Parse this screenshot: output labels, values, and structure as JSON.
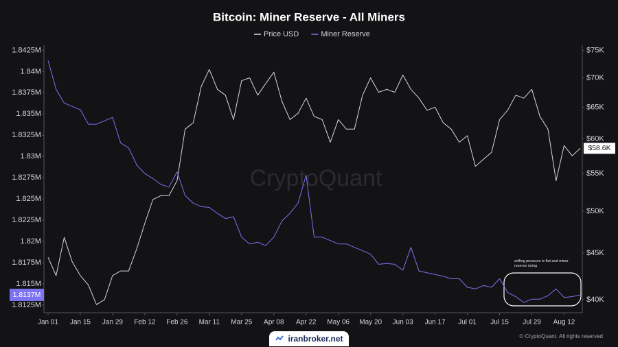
{
  "chart_data": {
    "type": "line",
    "title": "Bitcoin: Miner Reserve - All Miners",
    "categories": [
      "Jan 01",
      null,
      null,
      null,
      "Jan 15",
      null,
      null,
      null,
      "Jan 29",
      null,
      null,
      null,
      "Feb 12",
      null,
      null,
      null,
      "Feb 26",
      null,
      null,
      null,
      "Mar 11",
      null,
      null,
      null,
      "Mar 25",
      null,
      null,
      null,
      "Apr 08",
      null,
      null,
      null,
      "Apr 22",
      null,
      null,
      null,
      "May 06",
      null,
      null,
      null,
      "May 20",
      null,
      null,
      null,
      "Jun 03",
      null,
      null,
      null,
      "Jun 17",
      null,
      null,
      null,
      "Jul 01",
      null,
      null,
      null,
      "Jul 15",
      null,
      null,
      null,
      "Jul 29",
      null,
      null,
      null,
      "Aug 12",
      null,
      null
    ],
    "series": [
      {
        "name": "Price USD",
        "color": "#d9d9d9",
        "axis": "y2",
        "values": [
          44500,
          42500,
          46800,
          44000,
          42500,
          41500,
          39500,
          40000,
          42500,
          43000,
          43000,
          45500,
          48500,
          51500,
          52000,
          52000,
          54000,
          61500,
          62500,
          68500,
          71500,
          68000,
          67000,
          63000,
          69500,
          70000,
          67000,
          69000,
          71000,
          66000,
          63000,
          64000,
          66500,
          63500,
          63000,
          59500,
          63000,
          61500,
          61500,
          67000,
          70000,
          67500,
          68000,
          67500,
          70500,
          68000,
          66500,
          64500,
          65000,
          62500,
          61500,
          59500,
          60500,
          56000,
          57000,
          58000,
          63000,
          64500,
          67000,
          66500,
          68000,
          63500,
          61500,
          54000,
          59000,
          57500,
          58600
        ]
      },
      {
        "name": "Miner Reserve",
        "color": "#7b73f0",
        "values": [
          1841300,
          1837900,
          1836300,
          1835900,
          1835500,
          1833800,
          1833800,
          1834200,
          1834600,
          1831600,
          1831000,
          1829000,
          1828000,
          1827400,
          1826700,
          1826400,
          1828200,
          1825400,
          1824500,
          1824100,
          1824000,
          1823300,
          1822700,
          1822900,
          1820500,
          1819700,
          1819900,
          1819500,
          1820500,
          1822400,
          1823300,
          1824500,
          1827800,
          1820500,
          1820500,
          1820100,
          1819700,
          1819700,
          1819300,
          1818900,
          1818500,
          1817300,
          1817400,
          1817300,
          1816600,
          1819300,
          1816500,
          1816300,
          1816100,
          1815900,
          1815600,
          1815600,
          1814600,
          1814400,
          1814800,
          1814600,
          1815600,
          1814000,
          1813500,
          1812800,
          1813200,
          1813200,
          1813600,
          1814400,
          1813400,
          1813500,
          1813700
        ]
      }
    ],
    "ylim": [
      1811600,
      1843100
    ],
    "yticks": [
      {
        "value": 1842500,
        "label": "1.8425M"
      },
      {
        "value": 1840000,
        "label": "1.84M"
      },
      {
        "value": 1837500,
        "label": "1.8375M"
      },
      {
        "value": 1835000,
        "label": "1.835M"
      },
      {
        "value": 1832500,
        "label": "1.8325M"
      },
      {
        "value": 1830000,
        "label": "1.83M"
      },
      {
        "value": 1827500,
        "label": "1.8275M"
      },
      {
        "value": 1825000,
        "label": "1.825M"
      },
      {
        "value": 1822500,
        "label": "1.8225M"
      },
      {
        "value": 1820000,
        "label": "1.82M"
      },
      {
        "value": 1817500,
        "label": "1.8175M"
      },
      {
        "value": 1815000,
        "label": "1.815M"
      },
      {
        "value": 1812500,
        "label": "1.8125M"
      }
    ],
    "y2lim": [
      38700,
      76000
    ],
    "y2log": true,
    "y2ticks": [
      {
        "value": 40000,
        "label": "$40K"
      },
      {
        "value": 45000,
        "label": "$45K"
      },
      {
        "value": 50000,
        "label": "$50K"
      },
      {
        "value": 55000,
        "label": "$55K"
      },
      {
        "value": 60000,
        "label": "$60K"
      },
      {
        "value": 65000,
        "label": "$65K"
      },
      {
        "value": 70000,
        "label": "$70K"
      },
      {
        "value": 75000,
        "label": "$75K"
      }
    ],
    "grid": false,
    "legend": "top",
    "current_labels": [
      {
        "value": 1813700,
        "label": "1.8137M",
        "axis": "y"
      },
      {
        "value": 58600,
        "label": "$58.6K",
        "axis": "y2"
      }
    ],
    "annotation": "selling pressure is flat and miner reserve rising",
    "watermark": "CryptoQuant",
    "copyright": "© CryptoQuant. All rights reserved",
    "brand": "iranbroker.net"
  }
}
